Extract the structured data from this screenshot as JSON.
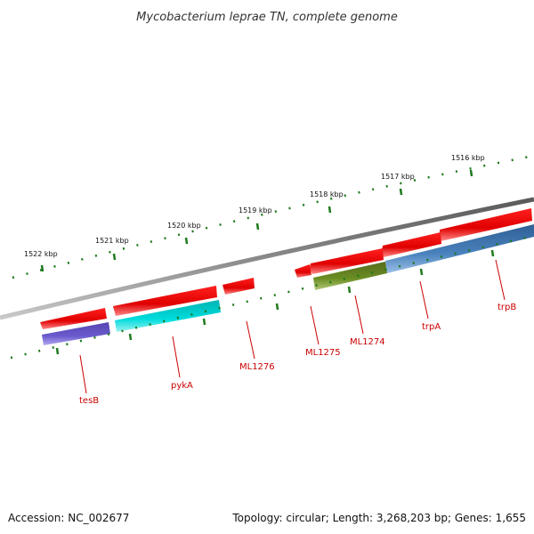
{
  "title": "Mycobacterium leprae TN, complete genome",
  "footer": {
    "accession": "Accession: NC_002677",
    "topology": "Topology: circular; Length: 3,268,203 bp; Genes: 1,655"
  },
  "ticks": [
    {
      "label": "1516 kbp"
    },
    {
      "label": "1517 kbp"
    },
    {
      "label": "1518 kbp"
    },
    {
      "label": "1519 kbp"
    },
    {
      "label": "1520 kbp"
    },
    {
      "label": "1521 kbp"
    },
    {
      "label": "1522 kbp"
    }
  ],
  "genes": [
    {
      "label": "trpB"
    },
    {
      "label": "trpA"
    },
    {
      "label": "ML1274"
    },
    {
      "label": "ML1275"
    },
    {
      "label": "ML1276"
    },
    {
      "label": "pykA"
    },
    {
      "label": "tesB"
    }
  ],
  "colors": {
    "backbone": "#7a7a7a",
    "cds": "#ee0000",
    "tick": "#1e7a1e",
    "label": "#cc0000",
    "trp_cog": "#3e77b0",
    "ml1274_cog": "#6b8e23",
    "pykA_cog": "#00cccc",
    "tesB_cog": "#6a5acd"
  }
}
